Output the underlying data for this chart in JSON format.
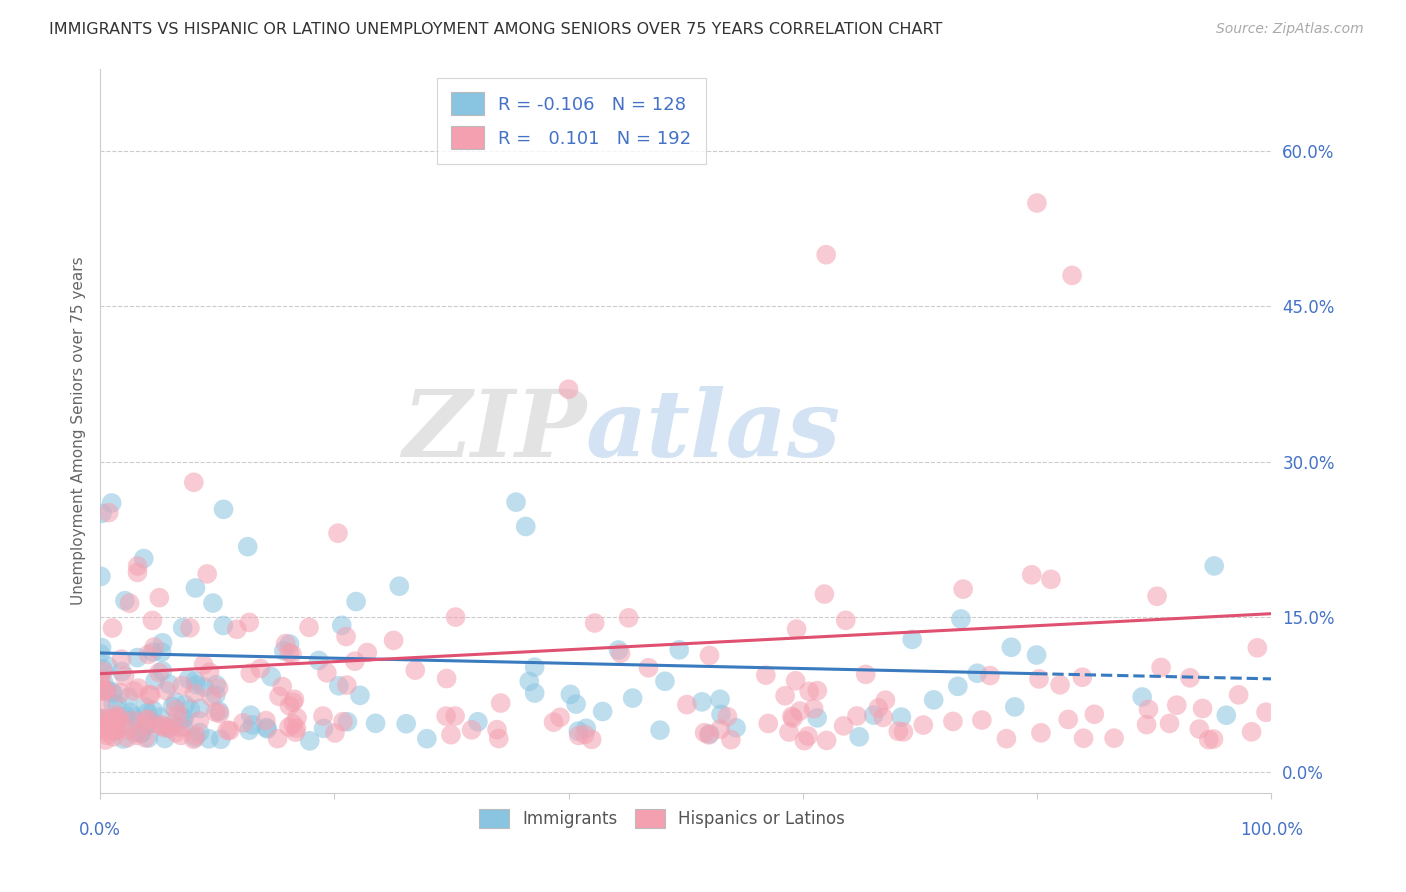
{
  "title": "IMMIGRANTS VS HISPANIC OR LATINO UNEMPLOYMENT AMONG SENIORS OVER 75 YEARS CORRELATION CHART",
  "source": "Source: ZipAtlas.com",
  "ylabel": "Unemployment Among Seniors over 75 years",
  "xlim": [
    0,
    100
  ],
  "ylim": [
    -2,
    68
  ],
  "yticks": [
    0,
    15,
    30,
    45,
    60
  ],
  "xticks": [
    0,
    20,
    40,
    60,
    80,
    100
  ],
  "blue_color": "#89c4e1",
  "pink_color": "#f4a0b0",
  "blue_line_color": "#3a7abf",
  "pink_line_color": "#e05070",
  "background_color": "#ffffff",
  "grid_color": "#cccccc",
  "title_color": "#333333",
  "axis_label_color": "#4472c6",
  "n_blue": 128,
  "n_pink": 192,
  "blue_intercept": 11.5,
  "blue_slope": -0.025,
  "pink_intercept": 9.5,
  "pink_slope": 0.058
}
